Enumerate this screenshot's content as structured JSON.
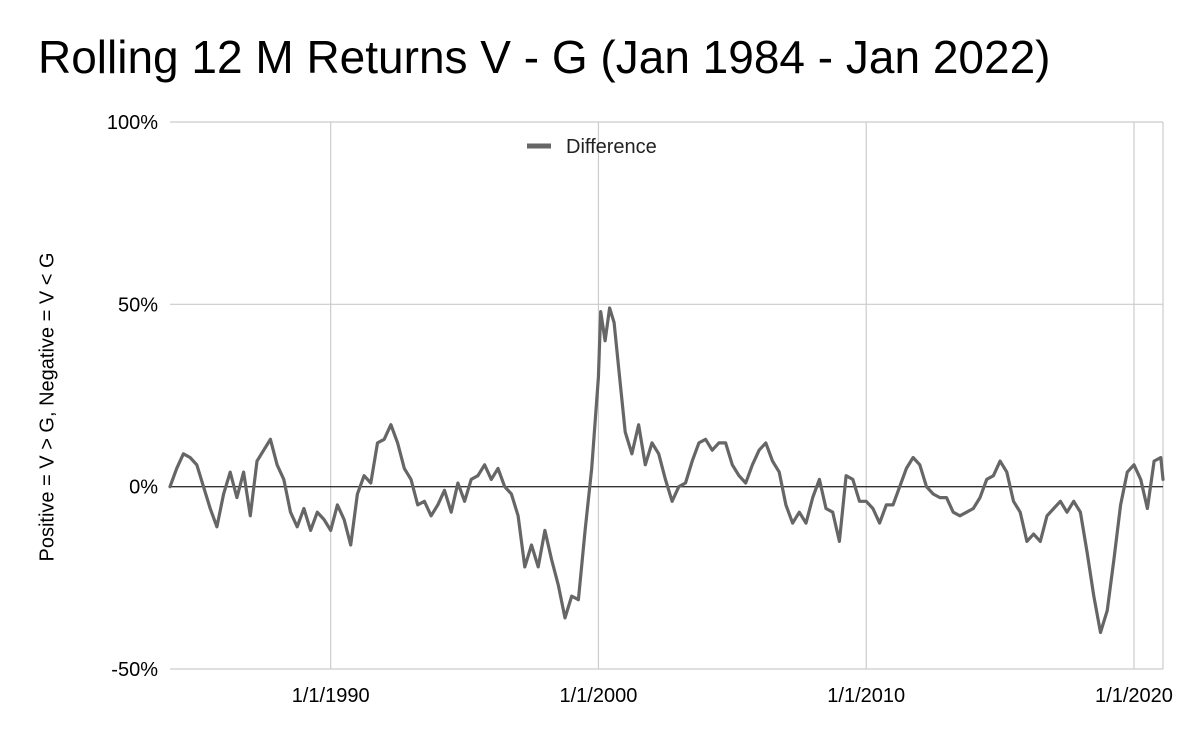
{
  "chart_data": {
    "type": "line",
    "title": "Rolling 12 M Returns V - G (Jan 1984 - Jan 2022)",
    "xlabel": "",
    "ylabel": "Positive = V > G, Negative = V < G",
    "ylim": [
      -0.5,
      1.0
    ],
    "xlim": [
      "1984-01-01",
      "2021-02-01"
    ],
    "yticks": [
      {
        "value": 1.0,
        "label": "100%"
      },
      {
        "value": 0.5,
        "label": "50%"
      },
      {
        "value": 0.0,
        "label": "0%"
      },
      {
        "value": -0.5,
        "label": "-50%"
      }
    ],
    "xticks": [
      {
        "value": "1990-01-01",
        "label": "1/1/1990"
      },
      {
        "value": "2000-01-01",
        "label": "1/1/2000"
      },
      {
        "value": "2010-01-01",
        "label": "1/1/2010"
      },
      {
        "value": "2020-01-01",
        "label": "1/1/2020"
      }
    ],
    "grid": true,
    "legend_position": "top-center",
    "series": [
      {
        "name": "Difference",
        "color": "#666666",
        "points": [
          [
            "1984-01",
            0.0
          ],
          [
            "1984-04",
            0.05
          ],
          [
            "1984-07",
            0.09
          ],
          [
            "1984-10",
            0.08
          ],
          [
            "1985-01",
            0.06
          ],
          [
            "1985-04",
            0.0
          ],
          [
            "1985-07",
            -0.06
          ],
          [
            "1985-10",
            -0.11
          ],
          [
            "1986-01",
            -0.02
          ],
          [
            "1986-04",
            0.04
          ],
          [
            "1986-07",
            -0.03
          ],
          [
            "1986-10",
            0.04
          ],
          [
            "1987-01",
            -0.08
          ],
          [
            "1987-04",
            0.07
          ],
          [
            "1987-07",
            0.1
          ],
          [
            "1987-10",
            0.13
          ],
          [
            "1988-01",
            0.06
          ],
          [
            "1988-04",
            0.02
          ],
          [
            "1988-07",
            -0.07
          ],
          [
            "1988-10",
            -0.11
          ],
          [
            "1989-01",
            -0.06
          ],
          [
            "1989-04",
            -0.12
          ],
          [
            "1989-07",
            -0.07
          ],
          [
            "1989-10",
            -0.09
          ],
          [
            "1990-01",
            -0.12
          ],
          [
            "1990-04",
            -0.05
          ],
          [
            "1990-07",
            -0.09
          ],
          [
            "1990-10",
            -0.16
          ],
          [
            "1991-01",
            -0.02
          ],
          [
            "1991-04",
            0.03
          ],
          [
            "1991-07",
            0.01
          ],
          [
            "1991-10",
            0.12
          ],
          [
            "1992-01",
            0.13
          ],
          [
            "1992-04",
            0.17
          ],
          [
            "1992-07",
            0.12
          ],
          [
            "1992-10",
            0.05
          ],
          [
            "1993-01",
            0.02
          ],
          [
            "1993-04",
            -0.05
          ],
          [
            "1993-07",
            -0.04
          ],
          [
            "1993-10",
            -0.08
          ],
          [
            "1994-01",
            -0.05
          ],
          [
            "1994-04",
            -0.01
          ],
          [
            "1994-07",
            -0.07
          ],
          [
            "1994-10",
            0.01
          ],
          [
            "1995-01",
            -0.04
          ],
          [
            "1995-04",
            0.02
          ],
          [
            "1995-07",
            0.03
          ],
          [
            "1995-10",
            0.06
          ],
          [
            "1996-01",
            0.02
          ],
          [
            "1996-04",
            0.05
          ],
          [
            "1996-07",
            0.0
          ],
          [
            "1996-10",
            -0.02
          ],
          [
            "1997-01",
            -0.08
          ],
          [
            "1997-04",
            -0.22
          ],
          [
            "1997-07",
            -0.16
          ],
          [
            "1997-10",
            -0.22
          ],
          [
            "1998-01",
            -0.12
          ],
          [
            "1998-04",
            -0.2
          ],
          [
            "1998-07",
            -0.27
          ],
          [
            "1998-10",
            -0.36
          ],
          [
            "1999-01",
            -0.3
          ],
          [
            "1999-04",
            -0.31
          ],
          [
            "1999-07",
            -0.12
          ],
          [
            "1999-10",
            0.05
          ],
          [
            "2000-01",
            0.3
          ],
          [
            "2000-02",
            0.48
          ],
          [
            "2000-04",
            0.4
          ],
          [
            "2000-06",
            0.49
          ],
          [
            "2000-08",
            0.45
          ],
          [
            "2000-10",
            0.33
          ],
          [
            "2001-01",
            0.15
          ],
          [
            "2001-04",
            0.09
          ],
          [
            "2001-07",
            0.17
          ],
          [
            "2001-10",
            0.06
          ],
          [
            "2002-01",
            0.12
          ],
          [
            "2002-04",
            0.09
          ],
          [
            "2002-07",
            0.02
          ],
          [
            "2002-10",
            -0.04
          ],
          [
            "2003-01",
            0.0
          ],
          [
            "2003-04",
            0.01
          ],
          [
            "2003-07",
            0.07
          ],
          [
            "2003-10",
            0.12
          ],
          [
            "2004-01",
            0.13
          ],
          [
            "2004-04",
            0.1
          ],
          [
            "2004-07",
            0.12
          ],
          [
            "2004-10",
            0.12
          ],
          [
            "2005-01",
            0.06
          ],
          [
            "2005-04",
            0.03
          ],
          [
            "2005-07",
            0.01
          ],
          [
            "2005-10",
            0.06
          ],
          [
            "2006-01",
            0.1
          ],
          [
            "2006-04",
            0.12
          ],
          [
            "2006-07",
            0.07
          ],
          [
            "2006-10",
            0.04
          ],
          [
            "2007-01",
            -0.05
          ],
          [
            "2007-04",
            -0.1
          ],
          [
            "2007-07",
            -0.07
          ],
          [
            "2007-10",
            -0.1
          ],
          [
            "2008-01",
            -0.03
          ],
          [
            "2008-04",
            0.02
          ],
          [
            "2008-07",
            -0.06
          ],
          [
            "2008-10",
            -0.07
          ],
          [
            "2009-01",
            -0.15
          ],
          [
            "2009-04",
            0.03
          ],
          [
            "2009-07",
            0.02
          ],
          [
            "2009-10",
            -0.04
          ],
          [
            "2010-01",
            -0.04
          ],
          [
            "2010-04",
            -0.06
          ],
          [
            "2010-07",
            -0.1
          ],
          [
            "2010-10",
            -0.05
          ],
          [
            "2011-01",
            -0.05
          ],
          [
            "2011-04",
            0.0
          ],
          [
            "2011-07",
            0.05
          ],
          [
            "2011-10",
            0.08
          ],
          [
            "2012-01",
            0.06
          ],
          [
            "2012-04",
            0.0
          ],
          [
            "2012-07",
            -0.02
          ],
          [
            "2012-10",
            -0.03
          ],
          [
            "2013-01",
            -0.03
          ],
          [
            "2013-04",
            -0.07
          ],
          [
            "2013-07",
            -0.08
          ],
          [
            "2013-10",
            -0.07
          ],
          [
            "2014-01",
            -0.06
          ],
          [
            "2014-04",
            -0.03
          ],
          [
            "2014-07",
            0.02
          ],
          [
            "2014-10",
            0.03
          ],
          [
            "2015-01",
            0.07
          ],
          [
            "2015-04",
            0.04
          ],
          [
            "2015-07",
            -0.04
          ],
          [
            "2015-10",
            -0.07
          ],
          [
            "2016-01",
            -0.15
          ],
          [
            "2016-04",
            -0.13
          ],
          [
            "2016-07",
            -0.15
          ],
          [
            "2016-10",
            -0.08
          ],
          [
            "2017-01",
            -0.06
          ],
          [
            "2017-04",
            -0.04
          ],
          [
            "2017-07",
            -0.07
          ],
          [
            "2017-10",
            -0.04
          ],
          [
            "2018-01",
            -0.07
          ],
          [
            "2018-04",
            -0.18
          ],
          [
            "2018-07",
            -0.3
          ],
          [
            "2018-10",
            -0.4
          ],
          [
            "2019-01",
            -0.34
          ],
          [
            "2019-04",
            -0.2
          ],
          [
            "2019-07",
            -0.05
          ],
          [
            "2019-10",
            0.04
          ],
          [
            "2020-01",
            0.06
          ],
          [
            "2020-04",
            0.02
          ],
          [
            "2020-07",
            -0.06
          ],
          [
            "2020-10",
            0.07
          ],
          [
            "2021-01",
            0.08
          ],
          [
            "2021-02",
            0.02
          ]
        ]
      }
    ]
  }
}
